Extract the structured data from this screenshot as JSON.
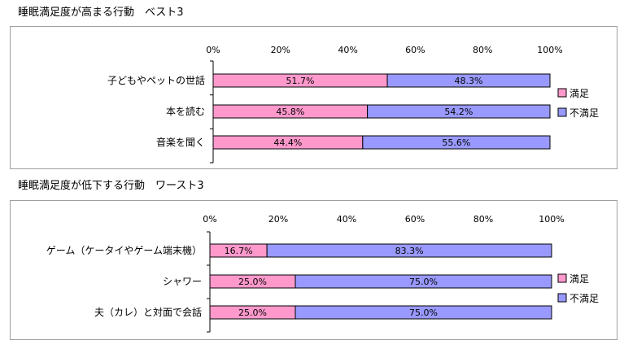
{
  "chart_data": [
    {
      "type": "bar",
      "stacked": true,
      "orientation": "horizontal",
      "title": "睡眠満足度が高まる行動　ベスト3",
      "x_ticks": [
        "0%",
        "20%",
        "40%",
        "60%",
        "80%",
        "100%"
      ],
      "xlim": [
        0,
        100
      ],
      "categories": [
        "子どもやペットの世話",
        "本を読む",
        "音楽を聞く"
      ],
      "series": [
        {
          "name": "満足",
          "color": "#ff99cc",
          "values": [
            51.7,
            45.8,
            44.4
          ],
          "labels": [
            "51.7%",
            "45.8%",
            "44.4%"
          ]
        },
        {
          "name": "不満足",
          "color": "#9999ff",
          "values": [
            48.3,
            54.2,
            55.6
          ],
          "labels": [
            "48.3%",
            "54.2%",
            "55.6%"
          ]
        }
      ],
      "legend": [
        "満足",
        "不満足"
      ],
      "legend_position": "right"
    },
    {
      "type": "bar",
      "stacked": true,
      "orientation": "horizontal",
      "title": "睡眠満足度が低下する行動　ワースト3",
      "x_ticks": [
        "0%",
        "20%",
        "40%",
        "60%",
        "80%",
        "100%"
      ],
      "xlim": [
        0,
        100
      ],
      "categories": [
        "ゲーム（ケータイやゲーム端末機）",
        "シャワー",
        "夫（カレ）と対面で会話"
      ],
      "series": [
        {
          "name": "満足",
          "color": "#ff99cc",
          "values": [
            16.7,
            25.0,
            25.0
          ],
          "labels": [
            "16.7%",
            "25.0%",
            "25.0%"
          ]
        },
        {
          "name": "不満足",
          "color": "#9999ff",
          "values": [
            83.3,
            75.0,
            75.0
          ],
          "labels": [
            "83.3%",
            "75.0%",
            "75.0%"
          ]
        }
      ],
      "legend": [
        "満足",
        "不満足"
      ],
      "legend_position": "right"
    }
  ]
}
